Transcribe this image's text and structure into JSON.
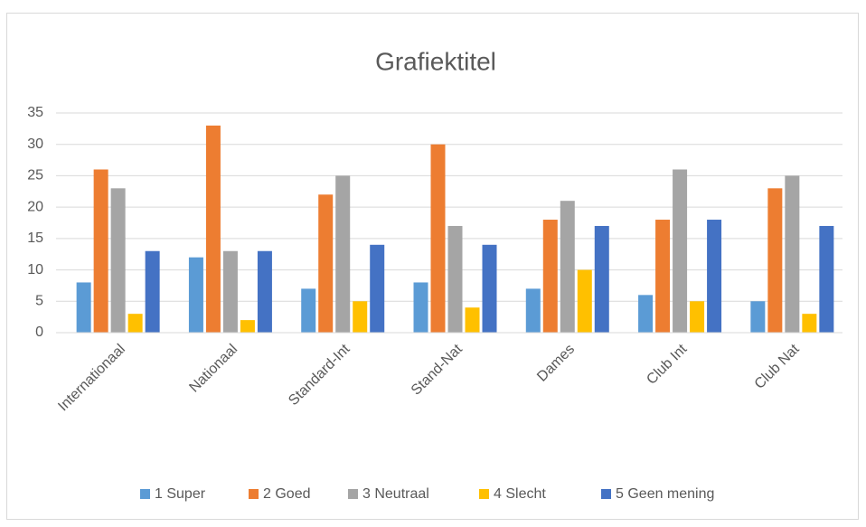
{
  "chart_data": {
    "type": "bar",
    "title": "Grafiektitel",
    "categories": [
      "Internationaal",
      "Nationaal",
      "Standard-Int",
      "Stand-Nat",
      "Dames",
      "Club Int",
      "Club Nat"
    ],
    "series": [
      {
        "name": "1 Super",
        "color": "#5b9bd5",
        "values": [
          8,
          12,
          7,
          8,
          7,
          6,
          5
        ]
      },
      {
        "name": "2 Goed",
        "color": "#ed7d31",
        "values": [
          26,
          33,
          22,
          30,
          18,
          18,
          23
        ]
      },
      {
        "name": "3 Neutraal",
        "color": "#a5a5a5",
        "values": [
          23,
          13,
          25,
          17,
          21,
          26,
          25
        ]
      },
      {
        "name": "4 Slecht",
        "color": "#ffc000",
        "values": [
          3,
          2,
          5,
          4,
          10,
          5,
          3
        ]
      },
      {
        "name": "5 Geen mening",
        "color": "#4472c4",
        "values": [
          13,
          13,
          14,
          14,
          17,
          18,
          17
        ]
      }
    ],
    "ylim": [
      0,
      35
    ],
    "yticks": [
      0,
      5,
      10,
      15,
      20,
      25,
      30,
      35
    ],
    "grid": true,
    "legend": "bottom"
  }
}
